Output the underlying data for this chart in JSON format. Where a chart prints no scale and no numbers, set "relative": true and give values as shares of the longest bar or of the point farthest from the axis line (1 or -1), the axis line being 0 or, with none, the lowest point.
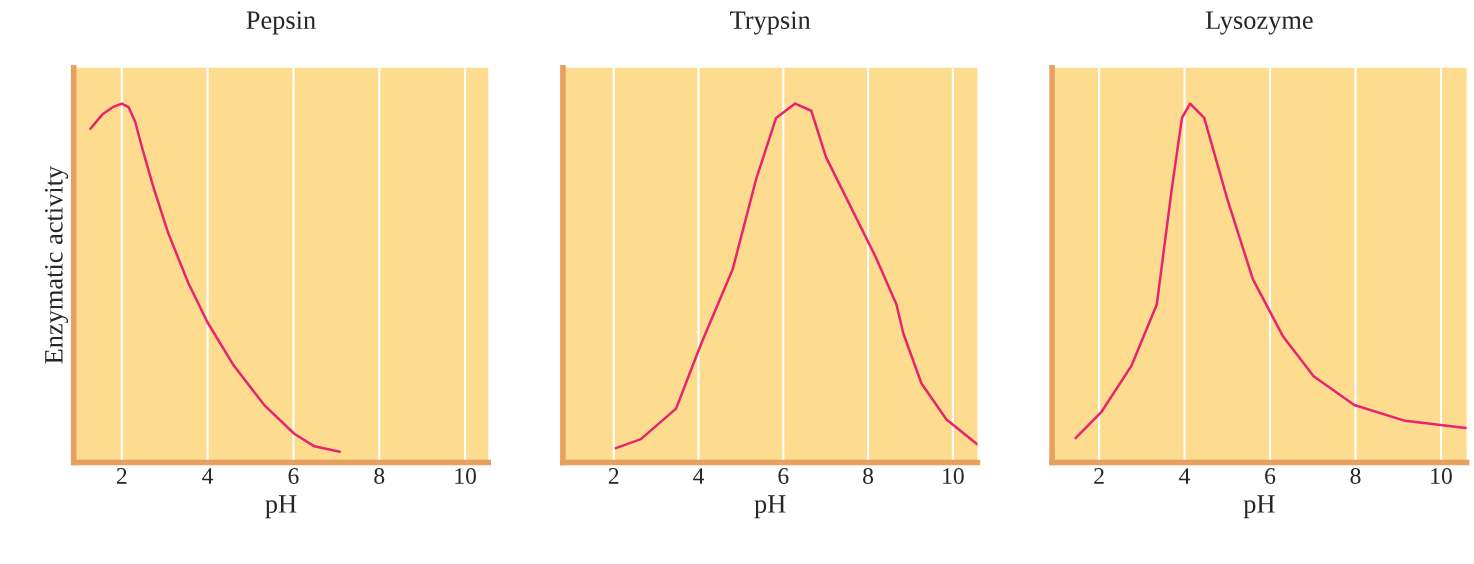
{
  "chart_data": [
    {
      "type": "line",
      "title": "Pepsin",
      "xlabel": "pH",
      "ylabel": "Enzymatic activity",
      "relative": true,
      "xlim": [
        0.88,
        10.54
      ],
      "xticks": [
        2,
        4,
        6,
        8,
        10
      ],
      "grid": "x",
      "tick_labels": "x",
      "marker": "none",
      "series": [
        {
          "color": "#e8246e",
          "x": [
            1.27,
            1.55,
            1.79,
            2.0,
            2.16,
            2.31,
            2.49,
            2.73,
            3.08,
            3.55,
            4.0,
            4.61,
            5.32,
            6.02,
            6.49,
            7.08
          ],
          "values": [
            0.93,
            0.97,
            0.99,
            1.0,
            0.99,
            0.95,
            0.87,
            0.77,
            0.64,
            0.5,
            0.39,
            0.27,
            0.16,
            0.08,
            0.045,
            0.03
          ]
        }
      ]
    },
    {
      "type": "line",
      "title": "Trypsin",
      "xlabel": "pH",
      "relative": true,
      "xlim": [
        0.8,
        10.58
      ],
      "xticks": [
        2,
        4,
        6,
        8,
        10
      ],
      "grid": "x",
      "tick_labels": "x",
      "marker": "none",
      "series": [
        {
          "color": "#e8246e",
          "x": [
            2.05,
            2.64,
            3.47,
            4.06,
            4.81,
            5.36,
            5.83,
            6.28,
            6.66,
            7.01,
            7.6,
            8.19,
            8.67,
            8.83,
            9.26,
            9.85,
            10.58
          ],
          "values": [
            0.04,
            0.065,
            0.15,
            0.33,
            0.54,
            0.79,
            0.96,
            1.0,
            0.98,
            0.85,
            0.71,
            0.57,
            0.44,
            0.36,
            0.22,
            0.12,
            0.05
          ]
        }
      ]
    },
    {
      "type": "line",
      "title": "Lysozyme",
      "xlabel": "pH",
      "relative": true,
      "xlim": [
        0.9,
        10.6
      ],
      "xticks": [
        2,
        4,
        6,
        8,
        10
      ],
      "grid": "x",
      "tick_labels": "x",
      "marker": "none",
      "series": [
        {
          "color": "#e8246e",
          "x": [
            1.45,
            2.05,
            2.76,
            3.35,
            3.71,
            3.94,
            4.13,
            4.46,
            5.01,
            5.6,
            6.31,
            7.02,
            7.97,
            9.16,
            10.58
          ],
          "values": [
            0.068,
            0.14,
            0.27,
            0.44,
            0.77,
            0.96,
            1.0,
            0.96,
            0.73,
            0.51,
            0.35,
            0.24,
            0.16,
            0.116,
            0.096
          ]
        }
      ]
    }
  ]
}
